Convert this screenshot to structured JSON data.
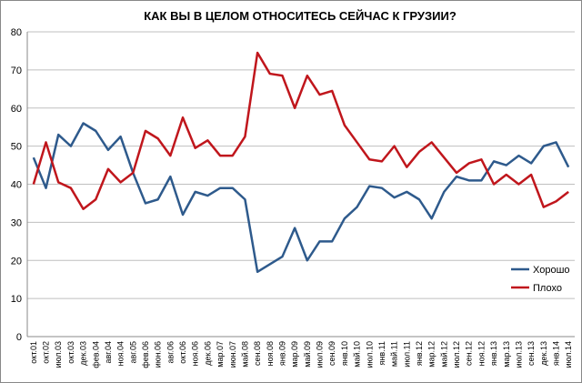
{
  "chart_data": {
    "type": "line",
    "title": "КАК ВЫ В ЦЕЛОМ ОТНОСИТЕСЬ СЕЙЧАС К ГРУЗИИ?",
    "categories": [
      "окт.01",
      "окт.02",
      "июл.03",
      "окт.03",
      "дек.03",
      "фев.04",
      "авг.04",
      "ноя.04",
      "авг.05",
      "фев.06",
      "июн.06",
      "авг.06",
      "окт.06",
      "ноя.06",
      "дек.06",
      "мар.07",
      "июн.07",
      "май.08",
      "сен.08",
      "ноя.08",
      "янв.09",
      "мар.09",
      "май.09",
      "июл.09",
      "сен.09",
      "янв.10",
      "май.10",
      "июл.10",
      "янв.11",
      "май.11",
      "июл.11",
      "янв.12",
      "мар.12",
      "май.12",
      "июл.12",
      "сен.12",
      "ноя.12",
      "янв.13",
      "мар.13",
      "июл.13",
      "сен.13",
      "дек.13",
      "янв.14",
      "июл.14"
    ],
    "series": [
      {
        "name": "Хорошо",
        "color": "#2e5a8c",
        "values": [
          47,
          39,
          53,
          50,
          56,
          54,
          49,
          52.5,
          43,
          35,
          36,
          42,
          32,
          38,
          37,
          39,
          39,
          36,
          17,
          19,
          21,
          28.5,
          20,
          25,
          25,
          31,
          34,
          39.5,
          39,
          36.5,
          38,
          36,
          31,
          38,
          42,
          41,
          41,
          46,
          45,
          47.5,
          45.5,
          50,
          51,
          44.5
        ]
      },
      {
        "name": "Плохо",
        "color": "#c0161c",
        "values": [
          40,
          51,
          40.5,
          39,
          33.5,
          36,
          44,
          40.5,
          43,
          54,
          52,
          47.5,
          57.5,
          49.5,
          51.5,
          47.5,
          47.5,
          52.5,
          74.5,
          69,
          68.5,
          60,
          68.5,
          63.5,
          64.5,
          55.5,
          51,
          46.5,
          46,
          50,
          44.5,
          48.5,
          51,
          47,
          43,
          45.5,
          46.5,
          40,
          42.5,
          40,
          42.5,
          34,
          35.5,
          38
        ]
      }
    ],
    "ylim": [
      0,
      80
    ],
    "yticks": [
      0,
      10,
      20,
      30,
      40,
      50,
      60,
      70,
      80
    ],
    "grid": true,
    "legend": "right"
  }
}
